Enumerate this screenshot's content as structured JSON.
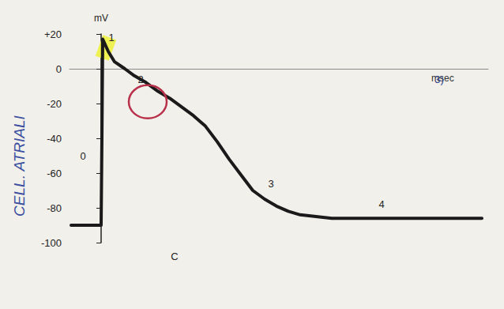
{
  "chart_data": {
    "type": "line",
    "ylabel": "mV",
    "xlabel": "msec",
    "x": [
      -38,
      0,
      1,
      2,
      9,
      17,
      30,
      42,
      57,
      72,
      87,
      102,
      117,
      132,
      147,
      162,
      177,
      192,
      207,
      222,
      237,
      252,
      272,
      292,
      332,
      372,
      420,
      482
    ],
    "series": [
      {
        "name": "mV",
        "color": "#1a1a1a",
        "line_style": "solid",
        "values": [
          -90,
          -90,
          -40,
          17,
          10,
          4,
          0,
          -4,
          -8,
          -13,
          -17,
          -22,
          -27,
          -33,
          -42,
          -52,
          -61,
          -70,
          -75,
          -79,
          -82,
          -84,
          -85,
          -86,
          -86,
          -86,
          -86,
          -86
        ]
      }
    ],
    "xlim": [
      -40,
      490
    ],
    "ylim": [
      -100,
      20
    ],
    "yticks": [
      {
        "value": 20,
        "label": "+20"
      },
      0,
      -20,
      -40,
      -60,
      -80,
      -100
    ],
    "tick_labels": "y",
    "grid": false,
    "annotations": [
      {
        "text": "0",
        "x": -23,
        "y": -50
      },
      {
        "text": "1",
        "x": 13,
        "y": 18
      },
      {
        "text": "2",
        "x": 50,
        "y": -6
      },
      {
        "text": "3",
        "x": 215,
        "y": -66
      },
      {
        "text": "4",
        "x": 355,
        "y": -78
      },
      {
        "text": "C",
        "x": 93,
        "y": -108
      },
      {
        "text": "3)",
        "x": 428,
        "y": -6,
        "color": "#2a3a80"
      }
    ],
    "side_label": {
      "text": "CELL. ATRIALI",
      "color": "#3a4fa0"
    },
    "highlights": [
      {
        "x": 6,
        "y": 12,
        "color": "#eef03a",
        "marker": "square"
      },
      {
        "x": 59,
        "y": -19,
        "color": "#b8304a",
        "marker": "ring"
      }
    ]
  }
}
